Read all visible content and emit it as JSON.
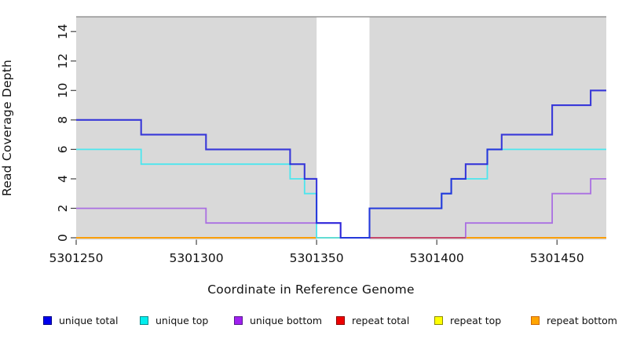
{
  "chart_data": {
    "type": "line",
    "subtype": "step-coverage",
    "title": "",
    "xlabel": "Coordinate in Reference Genome",
    "ylabel": "Read Coverage Depth",
    "xlim": [
      5301250,
      5301470.5
    ],
    "ylim": [
      0,
      15
    ],
    "x_ticks": [
      5301250,
      5301300,
      5301350,
      5301400,
      5301450
    ],
    "y_ticks": [
      0,
      2,
      4,
      6,
      8,
      10,
      12,
      14
    ],
    "grid": false,
    "legend_position": "bottom",
    "background_color": "#ffffff",
    "covered_region_fill": "#d9d9d9",
    "covered_region_border": "#8a8a8a",
    "coverage_regions": [
      [
        5301250,
        5301350
      ],
      [
        5301372,
        5301470.5
      ]
    ],
    "uncovered_gap_region": [
      5301350,
      5301372
    ],
    "series": [
      {
        "name": "unique total",
        "line_color": "#1b1bd8",
        "legend_fill": "#0000ee",
        "legend_border": "#000080",
        "points": [
          [
            5301250,
            8
          ],
          [
            5301277,
            7
          ],
          [
            5301304,
            6
          ],
          [
            5301339,
            5
          ],
          [
            5301345,
            4
          ],
          [
            5301350,
            1
          ],
          [
            5301360,
            0
          ],
          [
            5301372,
            2
          ],
          [
            5301402,
            3
          ],
          [
            5301406,
            4
          ],
          [
            5301412,
            5
          ],
          [
            5301421,
            6
          ],
          [
            5301427,
            7
          ],
          [
            5301448,
            9
          ],
          [
            5301464,
            10
          ],
          [
            5301470.5,
            10
          ]
        ]
      },
      {
        "name": "unique top",
        "line_color": "#4de6ee",
        "legend_fill": "#00eeee",
        "legend_border": "#008b8b",
        "points": [
          [
            5301250,
            6
          ],
          [
            5301277,
            5
          ],
          [
            5301339,
            4
          ],
          [
            5301345,
            3
          ],
          [
            5301350,
            0
          ],
          [
            5301372,
            2
          ],
          [
            5301402,
            3
          ],
          [
            5301406,
            4
          ],
          [
            5301421,
            6
          ],
          [
            5301470.5,
            6
          ]
        ]
      },
      {
        "name": "unique bottom",
        "line_color": "#aa6fe2",
        "legend_fill": "#a020f0",
        "legend_border": "#551a8b",
        "points": [
          [
            5301250,
            2
          ],
          [
            5301304,
            1
          ],
          [
            5301360,
            0
          ],
          [
            5301412,
            1
          ],
          [
            5301448,
            3
          ],
          [
            5301464,
            4
          ],
          [
            5301470.5,
            4
          ]
        ]
      },
      {
        "name": "repeat total",
        "line_color": "#c84060",
        "legend_fill": "#ee0000",
        "legend_border": "#8b0000",
        "points": [
          [
            5301250,
            0
          ],
          [
            5301470.5,
            0
          ]
        ]
      },
      {
        "name": "repeat top",
        "line_color": "#ffff00",
        "legend_fill": "#ffff00",
        "legend_border": "#8b8b00",
        "points": [
          [
            5301250,
            0
          ],
          [
            5301470.5,
            0
          ]
        ]
      },
      {
        "name": "repeat bottom",
        "line_color": "#ffa500",
        "legend_fill": "#ffa500",
        "legend_border": "#cd6600",
        "points": [
          [
            5301250,
            0
          ],
          [
            5301470.5,
            0
          ]
        ]
      }
    ],
    "zero_line_visible_segments": [
      {
        "from": 5301250,
        "to": 5301372,
        "color": "#ffa500"
      },
      {
        "from": 5301372,
        "to": 5301412,
        "color": "#c84060"
      },
      {
        "from": 5301412,
        "to": 5301470.5,
        "color": "#ffa500"
      }
    ]
  }
}
